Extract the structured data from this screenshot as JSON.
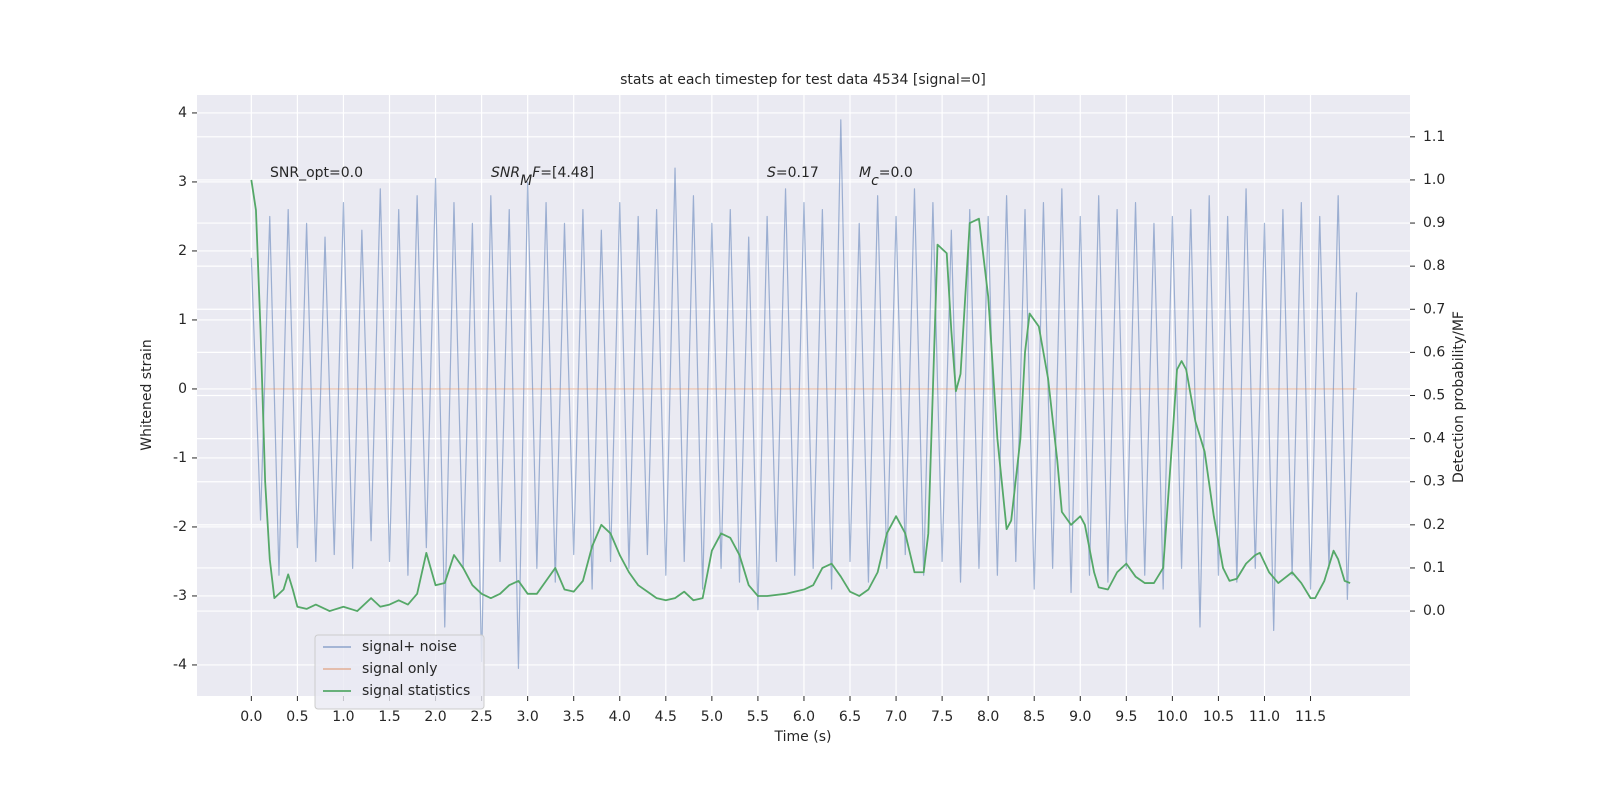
{
  "chart_data": {
    "type": "line",
    "title": "stats at each timestep for test data 4534 [signal=0]",
    "xlabel": "Time (s)",
    "ylabel": "Whitened strain",
    "y2label": "Detection probability/MF",
    "xlim": [
      -0.59,
      12.58
    ],
    "ylim": [
      -4.45,
      4.26
    ],
    "y2lim": [
      -0.197,
      1.197
    ],
    "xticks": [
      {
        "value": 0,
        "label": "0.0"
      },
      0.5,
      {
        "value": 1,
        "label": "1.0"
      },
      1.5,
      {
        "value": 2,
        "label": "2.0"
      },
      2.5,
      {
        "value": 3,
        "label": "3.0"
      },
      3.5,
      {
        "value": 4,
        "label": "4.0"
      },
      4.5,
      {
        "value": 5,
        "label": "5.0"
      },
      5.5,
      {
        "value": 6,
        "label": "6.0"
      },
      6.5,
      {
        "value": 7,
        "label": "7.0"
      },
      7.5,
      {
        "value": 8,
        "label": "8.0"
      },
      8.5,
      {
        "value": 9,
        "label": "9.0"
      },
      9.5,
      {
        "value": 10,
        "label": "10.0"
      },
      10.5,
      {
        "value": 11,
        "label": "11.0"
      },
      11.5
    ],
    "yticks": [
      -4,
      -3,
      -2,
      -1,
      0,
      1,
      2,
      3,
      4
    ],
    "y2ticks": [
      {
        "value": 0,
        "label": "0.0"
      },
      0.1,
      0.2,
      0.3,
      0.4,
      0.5,
      0.6,
      0.7,
      0.8,
      0.9,
      {
        "value": 1,
        "label": "1.0"
      },
      1.1
    ],
    "grid": true,
    "legend": "lower left",
    "annotations": [
      {
        "parts": [
          {
            "text": "SNR_opt=0.0"
          }
        ]
      },
      {
        "parts": [
          {
            "text": "SNR",
            "italic": true
          },
          {
            "text": "M",
            "italic": true,
            "sub": true
          },
          {
            "text": "F",
            "italic": true
          },
          {
            "text": "=[4.48]"
          }
        ]
      },
      {
        "parts": [
          {
            "text": "S",
            "italic": true
          },
          {
            "text": "=0.17"
          }
        ]
      },
      {
        "parts": [
          {
            "text": "M",
            "italic": true
          },
          {
            "text": "c",
            "italic": true,
            "sub": true
          },
          {
            "text": "=0.0"
          }
        ]
      }
    ],
    "series": [
      {
        "name": "signal+ noise",
        "color": "#4c72b0",
        "alpha": 0.5,
        "axis": "y",
        "x": [
          0,
          0.1,
          0.2,
          0.3,
          0.4,
          0.5,
          0.6,
          0.7,
          0.8,
          0.9,
          1,
          1.1,
          1.2,
          1.3,
          1.4,
          1.5,
          1.6,
          1.7,
          1.8,
          1.9,
          2,
          2.1,
          2.2,
          2.3,
          2.4,
          2.5,
          2.6,
          2.7,
          2.8,
          2.9,
          3,
          3.1,
          3.2,
          3.3,
          3.4,
          3.5,
          3.6,
          3.7,
          3.8,
          3.9,
          4,
          4.1,
          4.2,
          4.3,
          4.4,
          4.5,
          4.6,
          4.7,
          4.8,
          4.9,
          5,
          5.1,
          5.2,
          5.3,
          5.4,
          5.5,
          5.6,
          5.7,
          5.8,
          5.9,
          6,
          6.1,
          6.2,
          6.3,
          6.4,
          6.5,
          6.6,
          6.7,
          6.8,
          6.9,
          7,
          7.1,
          7.2,
          7.3,
          7.4,
          7.5,
          7.6,
          7.7,
          7.8,
          7.9,
          8,
          8.1,
          8.2,
          8.3,
          8.4,
          8.5,
          8.6,
          8.7,
          8.8,
          8.9,
          9,
          9.1,
          9.2,
          9.3,
          9.4,
          9.5,
          9.6,
          9.7,
          9.8,
          9.9,
          10,
          10.1,
          10.2,
          10.3,
          10.4,
          10.5,
          10.6,
          10.7,
          10.8,
          10.9,
          11,
          11.1,
          11.2,
          11.3,
          11.4,
          11.5,
          11.6,
          11.7,
          11.8,
          11.9,
          12
        ],
        "values": [
          1.9,
          -1.9,
          2.5,
          -2.7,
          2.6,
          -2.3,
          2.4,
          -2.5,
          2.2,
          -2.4,
          2.7,
          -2.6,
          2.3,
          -2.2,
          2.9,
          -2.5,
          2.6,
          -2.7,
          2.8,
          -2.3,
          3.05,
          -3.45,
          2.7,
          -2.6,
          2.4,
          -3.95,
          2.8,
          -2.5,
          2.6,
          -4.05,
          3.0,
          -2.6,
          2.7,
          -2.8,
          2.4,
          -2.4,
          2.6,
          -2.9,
          2.3,
          -2.5,
          2.7,
          -2.6,
          2.5,
          -2.4,
          2.6,
          -2.7,
          3.2,
          -2.5,
          2.8,
          -2.9,
          2.4,
          -2.6,
          2.6,
          -2.8,
          2.2,
          -3.2,
          2.5,
          -2.5,
          2.9,
          -2.7,
          2.7,
          -2.6,
          2.6,
          -2.9,
          3.9,
          -2.5,
          2.4,
          -2.8,
          2.8,
          -2.6,
          2.5,
          -2.4,
          2.9,
          -2.7,
          2.7,
          -2.5,
          2.3,
          -2.8,
          2.6,
          -2.6,
          2.5,
          -2.7,
          2.8,
          -2.5,
          2.6,
          -2.9,
          2.7,
          -2.6,
          2.9,
          -2.95,
          2.5,
          -2.7,
          2.8,
          -2.8,
          2.6,
          -2.6,
          2.7,
          -2.7,
          2.4,
          -2.9,
          2.5,
          -2.6,
          2.6,
          -3.45,
          2.8,
          -2.7,
          2.5,
          -2.8,
          2.9,
          -2.6,
          2.4,
          -3.5,
          2.6,
          -2.7,
          2.7,
          -2.9,
          2.5,
          -2.6,
          2.8,
          -3.05,
          1.4
        ]
      },
      {
        "name": "signal only",
        "color": "#dd8452",
        "alpha": 0.5,
        "axis": "y",
        "x": [
          0,
          12
        ],
        "values": [
          0,
          0
        ]
      },
      {
        "name": "signal statistics",
        "color": "#55a868",
        "alpha": 1,
        "axis": "y2",
        "x": [
          0,
          0.05,
          0.1,
          0.15,
          0.2,
          0.25,
          0.35,
          0.4,
          0.45,
          0.5,
          0.6,
          0.7,
          0.85,
          1.0,
          1.15,
          1.3,
          1.4,
          1.5,
          1.6,
          1.7,
          1.8,
          1.9,
          2.0,
          2.1,
          2.2,
          2.3,
          2.4,
          2.5,
          2.6,
          2.7,
          2.8,
          2.9,
          3.0,
          3.1,
          3.2,
          3.3,
          3.4,
          3.5,
          3.6,
          3.7,
          3.8,
          3.9,
          4.0,
          4.1,
          4.2,
          4.3,
          4.4,
          4.5,
          4.6,
          4.7,
          4.8,
          4.9,
          5.0,
          5.1,
          5.2,
          5.3,
          5.4,
          5.5,
          5.6,
          5.8,
          6.0,
          6.1,
          6.2,
          6.3,
          6.4,
          6.5,
          6.6,
          6.7,
          6.8,
          6.9,
          7.0,
          7.1,
          7.2,
          7.3,
          7.35,
          7.45,
          7.55,
          7.6,
          7.65,
          7.7,
          7.8,
          7.9,
          8.0,
          8.1,
          8.2,
          8.25,
          8.35,
          8.4,
          8.45,
          8.55,
          8.65,
          8.75,
          8.8,
          8.9,
          9.0,
          9.05,
          9.15,
          9.2,
          9.3,
          9.4,
          9.5,
          9.6,
          9.7,
          9.8,
          9.9,
          10.0,
          10.05,
          10.1,
          10.15,
          10.25,
          10.35,
          10.45,
          10.55,
          10.62,
          10.7,
          10.8,
          10.9,
          10.95,
          11.05,
          11.15,
          11.3,
          11.4,
          11.5,
          11.55,
          11.65,
          11.75,
          11.8,
          11.87,
          11.93
        ],
        "values": [
          1.0,
          0.93,
          0.65,
          0.3,
          0.12,
          0.03,
          0.05,
          0.085,
          0.05,
          0.01,
          0.005,
          0.015,
          0.0,
          0.01,
          0.0,
          0.03,
          0.01,
          0.015,
          0.025,
          0.015,
          0.04,
          0.135,
          0.06,
          0.065,
          0.13,
          0.1,
          0.06,
          0.04,
          0.03,
          0.04,
          0.06,
          0.07,
          0.04,
          0.04,
          0.07,
          0.1,
          0.05,
          0.045,
          0.07,
          0.15,
          0.2,
          0.18,
          0.13,
          0.09,
          0.06,
          0.045,
          0.03,
          0.025,
          0.03,
          0.045,
          0.025,
          0.03,
          0.14,
          0.18,
          0.17,
          0.13,
          0.06,
          0.035,
          0.035,
          0.04,
          0.05,
          0.06,
          0.1,
          0.11,
          0.08,
          0.045,
          0.035,
          0.05,
          0.09,
          0.18,
          0.22,
          0.18,
          0.09,
          0.09,
          0.18,
          0.85,
          0.83,
          0.65,
          0.51,
          0.55,
          0.9,
          0.91,
          0.73,
          0.4,
          0.19,
          0.21,
          0.4,
          0.6,
          0.69,
          0.66,
          0.54,
          0.35,
          0.23,
          0.2,
          0.22,
          0.2,
          0.09,
          0.055,
          0.05,
          0.09,
          0.11,
          0.08,
          0.065,
          0.065,
          0.1,
          0.4,
          0.56,
          0.58,
          0.56,
          0.44,
          0.37,
          0.22,
          0.1,
          0.07,
          0.075,
          0.11,
          0.13,
          0.135,
          0.09,
          0.065,
          0.09,
          0.065,
          0.03,
          0.03,
          0.07,
          0.14,
          0.12,
          0.07,
          0.065
        ]
      }
    ]
  }
}
